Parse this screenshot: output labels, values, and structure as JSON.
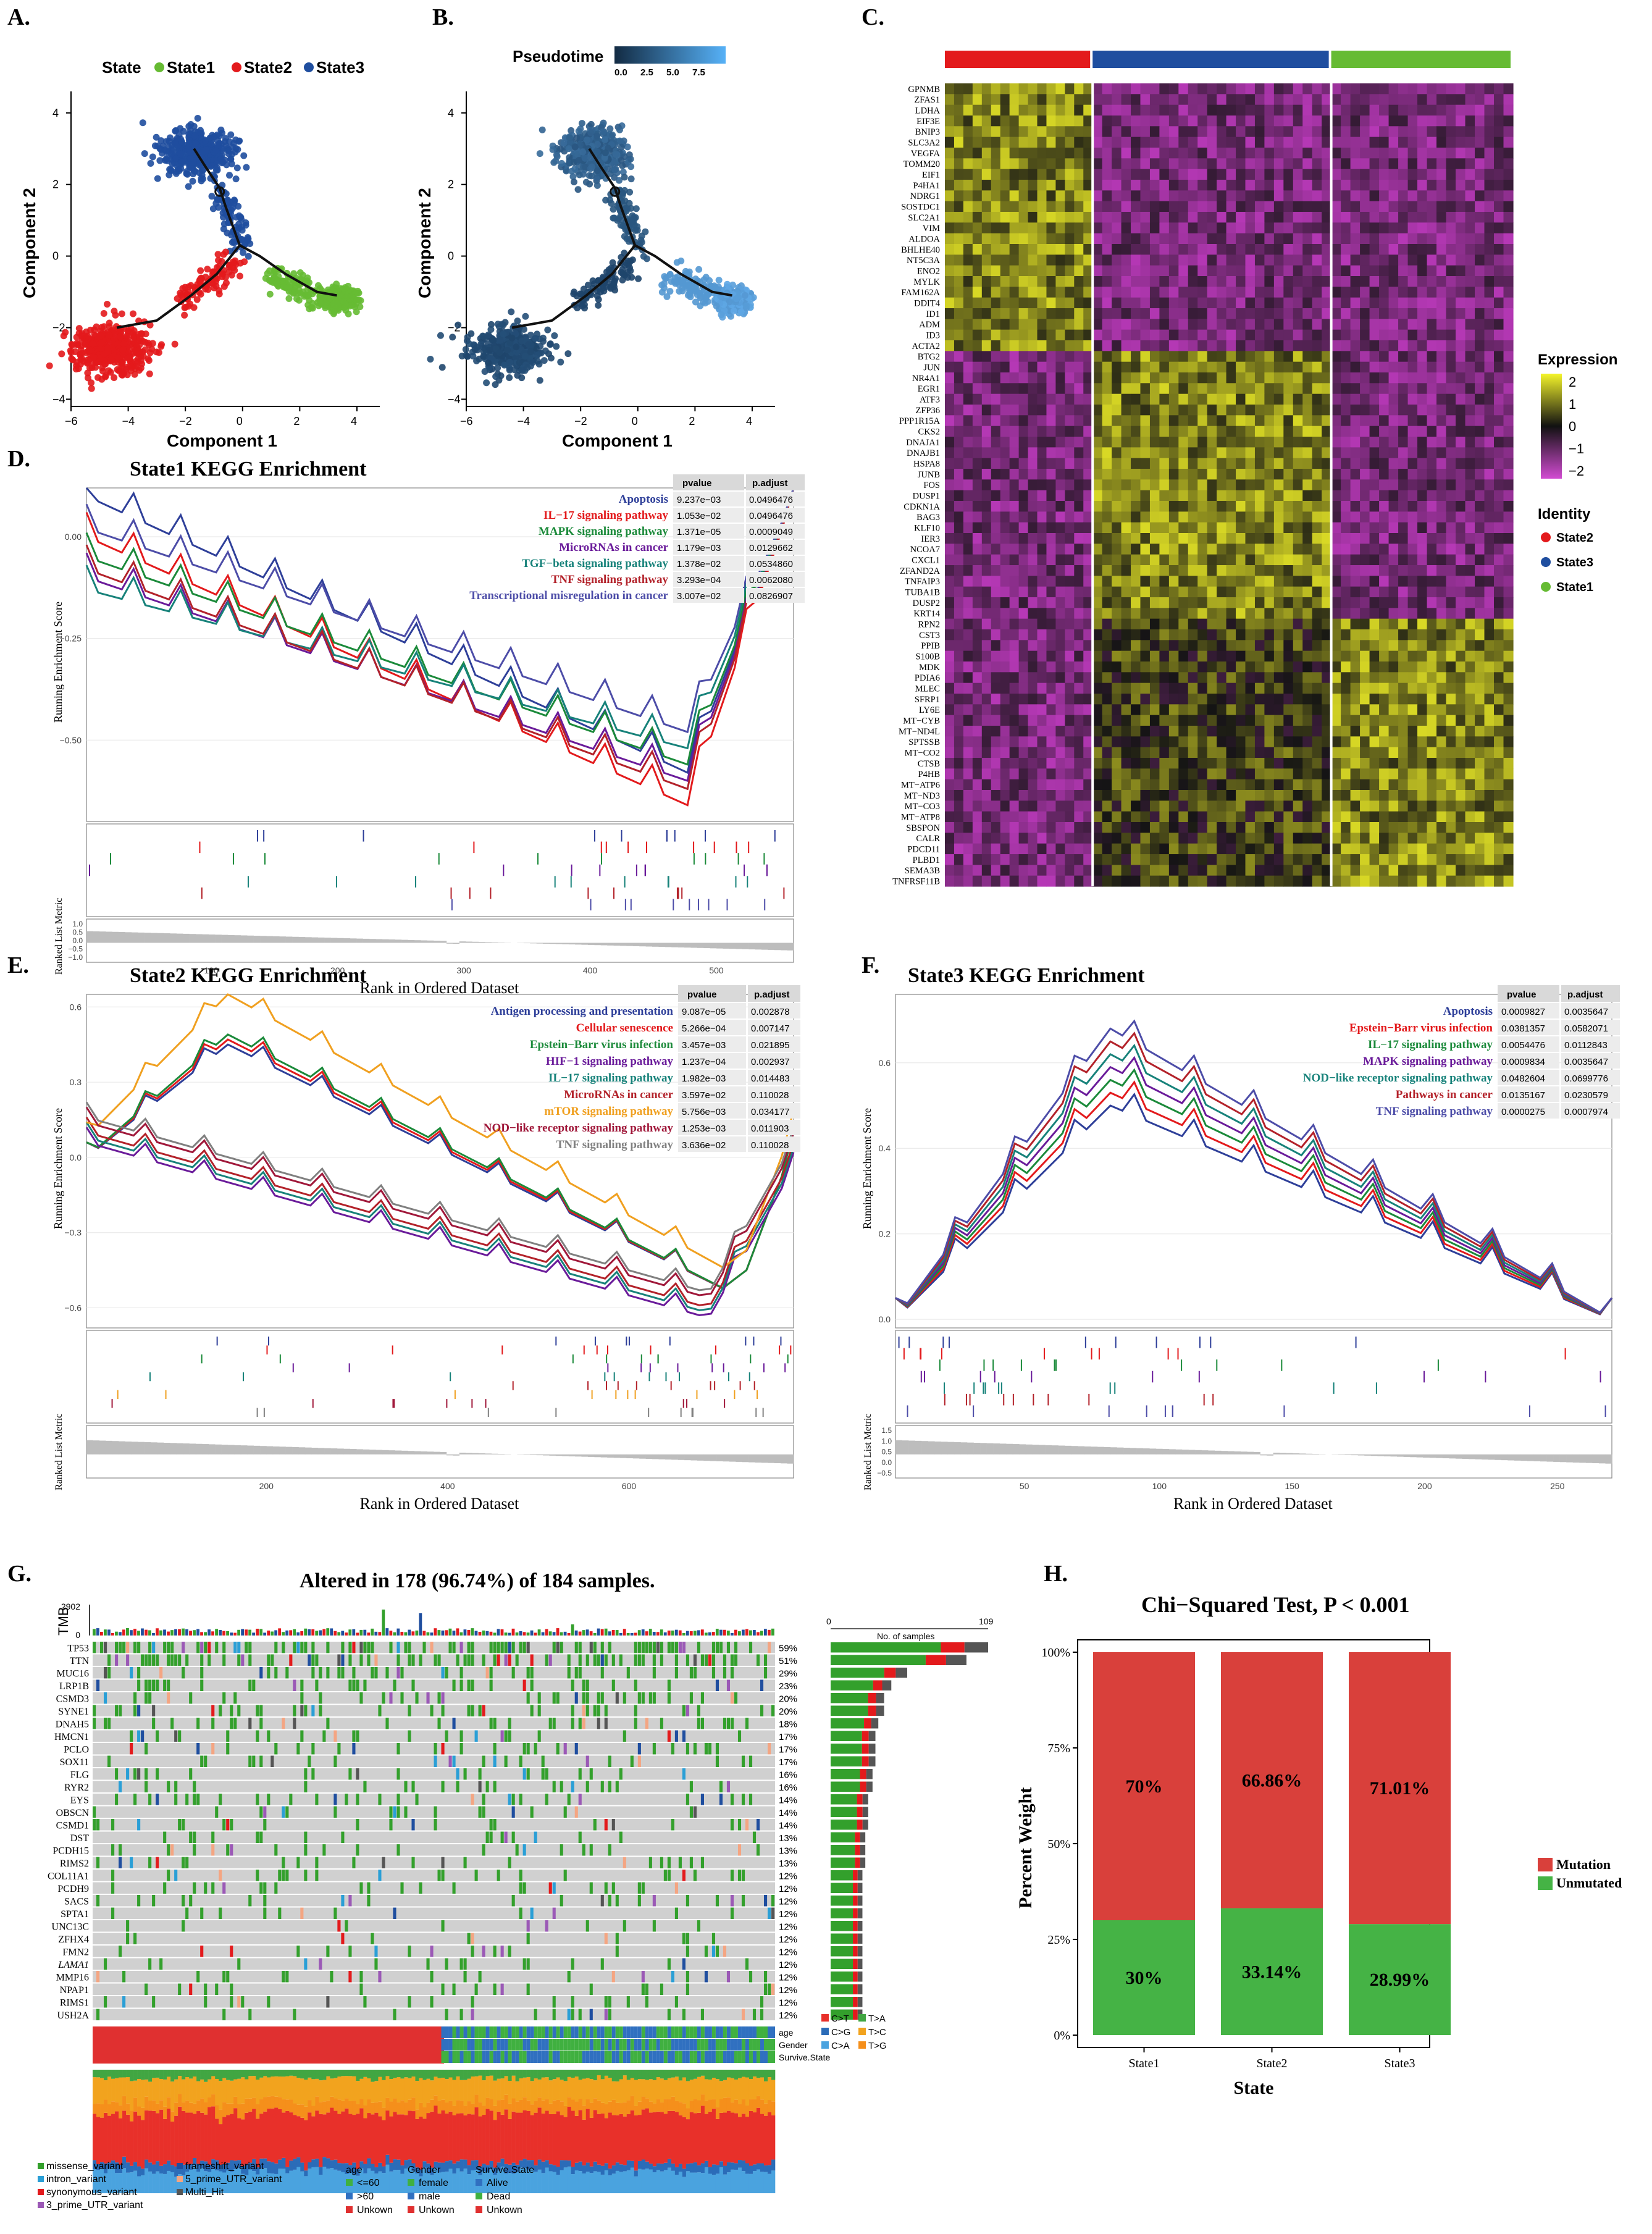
{
  "panel_labels": {
    "A": "A.",
    "B": "B.",
    "C": "C.",
    "D": "D.",
    "E": "E.",
    "F": "F.",
    "G": "G.",
    "H": "H."
  },
  "colors": {
    "state1": "#66bb33",
    "state2": "#e31a1c",
    "state3": "#1f4e9f",
    "mutation": "#d9403b",
    "unmutated": "#45b345"
  },
  "chart_data": [
    {
      "id": "A",
      "type": "scatter",
      "title": "",
      "legend_title": "State",
      "legend": [
        "State1",
        "State2",
        "State3"
      ],
      "xlabel": "Component 1",
      "ylabel": "Component 2",
      "xlim": [
        -6,
        4.8
      ],
      "ylim": [
        -4.2,
        4.6
      ],
      "xticks": [
        "−6",
        "−4",
        "−2",
        "0",
        "2",
        "4"
      ],
      "yticks": [
        "−4",
        "−2",
        "0",
        "2",
        "4"
      ],
      "clusters": [
        {
          "name": "State3",
          "center": [
            -1.6,
            2.9
          ],
          "spread": [
            1.0,
            0.55
          ],
          "arm": [
            [
              -0.8,
              1.8
            ],
            [
              0,
              0.3
            ]
          ]
        },
        {
          "name": "State2",
          "center": [
            -4.6,
            -2.6
          ],
          "spread": [
            1.1,
            0.55
          ],
          "arm": [
            [
              -2.2,
              -1.3
            ],
            [
              -0.3,
              -0.2
            ]
          ]
        },
        {
          "name": "State1",
          "center": [
            3.3,
            -1.2
          ],
          "spread": [
            0.5,
            0.25
          ],
          "arm": [
            [
              1.0,
              -0.6
            ],
            [
              2.5,
              -1.0
            ]
          ]
        }
      ]
    },
    {
      "id": "B",
      "type": "scatter",
      "legend_title": "Pseudotime",
      "legend_ticks": [
        "0.0",
        "2.5",
        "5.0",
        "7.5"
      ],
      "xlabel": "Component 1",
      "ylabel": "Component 2",
      "xlim": [
        -6,
        4.8
      ],
      "ylim": [
        -4.2,
        4.6
      ],
      "xticks": [
        "−6",
        "−4",
        "−2",
        "0",
        "2",
        "4"
      ],
      "yticks": [
        "−4",
        "−2",
        "0",
        "2",
        "4"
      ]
    },
    {
      "id": "C",
      "type": "heatmap",
      "identity_bar": [
        "State2",
        "State3",
        "State1"
      ],
      "groups_fraction": [
        0.26,
        0.42,
        0.32
      ],
      "genes": [
        "GPNMB",
        "ZFAS1",
        "LDHA",
        "EIF3E",
        "BNIP3",
        "SLC3A2",
        "VEGFA",
        "TOMM20",
        "EIF1",
        "P4HA1",
        "NDRG1",
        "SOSTDC1",
        "SLC2A1",
        "VIM",
        "ALDOA",
        "BHLHE40",
        "NT5C3A",
        "ENO2",
        "MYLK",
        "FAM162A",
        "DDIT4",
        "ID1",
        "ADM",
        "ID3",
        "ACTA2",
        "BTG2",
        "JUN",
        "NR4A1",
        "EGR1",
        "ATF3",
        "ZFP36",
        "PPP1R15A",
        "CKS2",
        "DNAJA1",
        "DNAJB1",
        "HSPA8",
        "JUNB",
        "FOS",
        "DUSP1",
        "CDKN1A",
        "BAG3",
        "KLF10",
        "IER3",
        "NCOA7",
        "CXCL1",
        "ZFAND2A",
        "TNFAIP3",
        "TUBA1B",
        "DUSP2",
        "KRT14",
        "RPN2",
        "CST3",
        "PPIB",
        "S100B",
        "MDK",
        "PDIA6",
        "MLEC",
        "SFRP1",
        "LY6E",
        "MT−CYB",
        "MT−ND4L",
        "SPTSSB",
        "MT−CO2",
        "CTSB",
        "P4HB",
        "MT−ATP6",
        "MT−ND3",
        "MT−CO3",
        "MT−ATP8",
        "SBSPON",
        "CALR",
        "PDCD11",
        "PLBD1",
        "SEMA3B",
        "TNFRSF11B"
      ],
      "gene_blocks": [
        25,
        25,
        25
      ],
      "legend_title": "Expression",
      "legend_ticks": [
        "2",
        "1",
        "0",
        "−1",
        "−2"
      ],
      "identity_title": "Identity",
      "identity_legend": [
        "State2",
        "State3",
        "State1"
      ]
    },
    {
      "id": "D",
      "type": "line",
      "title": "State1 KEGG Enrichment",
      "ylabel": "Running Enrichment Score",
      "ylabel2": "Ranked List Metric",
      "xlabel": "Rank in Ordered Dataset",
      "xlim": [
        0,
        560
      ],
      "ylim": [
        -0.7,
        0.12
      ],
      "yticks": [
        "0.00",
        "−0.25",
        "−0.50"
      ],
      "yticks2": [
        "1.0",
        "0.5",
        "0.0",
        "−0.5",
        "−1.0"
      ],
      "xticks": [
        "100",
        "200",
        "300",
        "400",
        "500"
      ],
      "table_headers": [
        "pvalue",
        "p.adjust"
      ],
      "series": [
        {
          "name": "Apoptosis",
          "color": "#2e3f99",
          "pvalue": "9.237e−03",
          "padjust": "0.0496476",
          "min": -0.58,
          "start": 0.1
        },
        {
          "name": "IL−17 signaling pathway",
          "color": "#e31a1c",
          "pvalue": "1.053e−02",
          "padjust": "0.0496476",
          "min": -0.66,
          "start": 0.0
        },
        {
          "name": "MAPK signaling pathway",
          "color": "#1b8a3a",
          "pvalue": "1.371e−05",
          "padjust": "0.0009049",
          "min": -0.56,
          "start": -0.05
        },
        {
          "name": "MicroRNAs in cancer",
          "color": "#6a1b9a",
          "pvalue": "1.179e−03",
          "padjust": "0.0129662",
          "min": -0.6,
          "start": -0.1
        },
        {
          "name": "TGF−beta signaling pathway",
          "color": "#17827a",
          "pvalue": "1.378e−02",
          "padjust": "0.0534860",
          "min": -0.52,
          "start": -0.13
        },
        {
          "name": "TNF signaling pathway",
          "color": "#b3222a",
          "pvalue": "3.293e−04",
          "padjust": "0.0062080",
          "min": -0.62,
          "start": -0.08
        },
        {
          "name": "Transcriptional misregulation in cancer",
          "color": "#4d4da8",
          "pvalue": "3.007e−02",
          "padjust": "0.0826907",
          "min": -0.48,
          "start": 0.02
        }
      ]
    },
    {
      "id": "E",
      "type": "line",
      "title": "State2 KEGG Enrichment",
      "ylabel": "Running Enrichment Score",
      "ylabel2": "Ranked List Metric",
      "xlabel": "Rank in Ordered Dataset",
      "xlim": [
        0,
        780
      ],
      "ylim": [
        -0.68,
        0.65
      ],
      "yticks": [
        "0.6",
        "0.3",
        "0.0",
        "−0.3",
        "−0.6"
      ],
      "xticks": [
        "200",
        "400",
        "600"
      ],
      "table_headers": [
        "pvalue",
        "p.adjust"
      ],
      "series": [
        {
          "name": "Antigen processing and presentation",
          "color": "#2e3f99",
          "pvalue": "9.087e−05",
          "padjust": "0.002878"
        },
        {
          "name": "Cellular senescence",
          "color": "#e31a1c",
          "pvalue": "5.266e−04",
          "padjust": "0.007147"
        },
        {
          "name": "Epstein−Barr virus infection",
          "color": "#1b8a3a",
          "pvalue": "3.457e−03",
          "padjust": "0.021895"
        },
        {
          "name": "HIF−1 signaling pathway",
          "color": "#6a1b9a",
          "pvalue": "1.237e−04",
          "padjust": "0.002937"
        },
        {
          "name": "IL−17 signaling pathway",
          "color": "#17827a",
          "pvalue": "1.982e−03",
          "padjust": "0.014483"
        },
        {
          "name": "MicroRNAs in cancer",
          "color": "#b3222a",
          "pvalue": "3.597e−02",
          "padjust": "0.110028"
        },
        {
          "name": "mTOR signaling pathway",
          "color": "#f0a020",
          "pvalue": "5.756e−03",
          "padjust": "0.034177"
        },
        {
          "name": "NOD−like receptor signaling pathway",
          "color": "#a0183a",
          "pvalue": "1.253e−03",
          "padjust": "0.011903"
        },
        {
          "name": "TNF signaling pathway",
          "color": "#808080",
          "pvalue": "3.636e−02",
          "padjust": "0.110028"
        }
      ]
    },
    {
      "id": "F",
      "type": "line",
      "title": "State3 KEGG Enrichment",
      "ylabel": "Running Enrichment Score",
      "ylabel2": "Ranked List Metric",
      "xlabel": "Rank in Ordered Dataset",
      "xlim": [
        0,
        270
      ],
      "ylim": [
        -0.02,
        0.76
      ],
      "yticks": [
        "0.6",
        "0.4",
        "0.2",
        "0.0"
      ],
      "yticks2": [
        "1.5",
        "1.0",
        "0.5",
        "0.0",
        "−0.5"
      ],
      "xticks": [
        "50",
        "100",
        "150",
        "200",
        "250"
      ],
      "table_headers": [
        "pvalue",
        "p.adjust"
      ],
      "series": [
        {
          "name": "Apoptosis",
          "color": "#2e3f99",
          "pvalue": "0.0009827",
          "padjust": "0.0035647"
        },
        {
          "name": "Epstein−Barr virus infection",
          "color": "#e31a1c",
          "pvalue": "0.0381357",
          "padjust": "0.0582071"
        },
        {
          "name": "IL−17 signaling pathway",
          "color": "#1b8a3a",
          "pvalue": "0.0054476",
          "padjust": "0.0112843"
        },
        {
          "name": "MAPK signaling pathway",
          "color": "#6a1b9a",
          "pvalue": "0.0009834",
          "padjust": "0.0035647"
        },
        {
          "name": "NOD−like receptor signaling pathway",
          "color": "#17827a",
          "pvalue": "0.0482604",
          "padjust": "0.0699776"
        },
        {
          "name": "Pathways in cancer",
          "color": "#b3222a",
          "pvalue": "0.0135167",
          "padjust": "0.0230579"
        },
        {
          "name": "TNF signaling pathway",
          "color": "#4d4da8",
          "pvalue": "0.0000275",
          "padjust": "0.0007974"
        }
      ]
    },
    {
      "id": "G",
      "type": "table",
      "title": "Altered in 178 (96.74%) of 184 samples.",
      "tmb_label": "TMB",
      "tmb_max": "2902",
      "tmb_min": "0",
      "samples_axis": [
        "0",
        "109"
      ],
      "samples_label": "No. of samples",
      "genes": [
        "TP53",
        "TTN",
        "MUC16",
        "LRP1B",
        "CSMD3",
        "SYNE1",
        "DNAH5",
        "HMCN1",
        "PCLO",
        "SOX11",
        "FLG",
        "RYR2",
        "EYS",
        "OBSCN",
        "CSMD1",
        "DST",
        "PCDH15",
        "RIMS2",
        "COL11A1",
        "PCDH9",
        "SACS",
        "SPTA1",
        "UNC13C",
        "ZFHX4",
        "FMN2",
        "LAMA1",
        "MMP16",
        "NPAP1",
        "RIMS1",
        "USH2A"
      ],
      "percents": [
        "59%",
        "51%",
        "29%",
        "23%",
        "20%",
        "20%",
        "18%",
        "17%",
        "17%",
        "17%",
        "16%",
        "16%",
        "14%",
        "14%",
        "14%",
        "13%",
        "13%",
        "13%",
        "12%",
        "12%",
        "12%",
        "12%",
        "12%",
        "12%",
        "12%",
        "12%",
        "12%",
        "12%",
        "12%",
        "12%"
      ],
      "counts": [
        109,
        94,
        53,
        42,
        37,
        37,
        33,
        31,
        31,
        31,
        29,
        29,
        26,
        26,
        26,
        24,
        24,
        24,
        22,
        22,
        22,
        22,
        22,
        22,
        22,
        22,
        22,
        22,
        22,
        22
      ],
      "clinical_rows": [
        "age",
        "Gender",
        "Survive.State"
      ],
      "titv_legend": [
        "C>T",
        "T>A",
        "C>G",
        "T>C",
        "C>A",
        "T>G"
      ],
      "titv_colors": [
        "#e8302a",
        "#41a642",
        "#2b6cb8",
        "#f2a31e",
        "#4aa3df",
        "#f58f1b"
      ],
      "variant_legend": [
        "missense_variant",
        "frameshift_variant",
        "intron_variant",
        "5_prime_UTR_variant",
        "synonymous_variant",
        "Multi_Hit",
        "3_prime_UTR_variant"
      ],
      "variant_colors": [
        "#33a02c",
        "#1f4e9f",
        "#2a9fd6",
        "#f4a582",
        "#e31a1c",
        "#555555",
        "#9b59b6"
      ],
      "age_title": "age",
      "age_legend": [
        "<=60",
        ">60",
        "Unkown"
      ],
      "age_colors": [
        "#40b040",
        "#3070c0",
        "#e03030"
      ],
      "gender_title": "Gender",
      "gender_legend": [
        "female",
        "male",
        "Unkown"
      ],
      "gender_colors": [
        "#40b040",
        "#3070c0",
        "#e03030"
      ],
      "survive_title": "Survive.State",
      "survive_legend": [
        "Alive",
        "Dead",
        "Unkown"
      ],
      "survive_colors": [
        "#3070c0",
        "#40b040",
        "#e03030"
      ]
    },
    {
      "id": "H",
      "type": "bar",
      "title": "Chi−Squared Test, P < 0.001",
      "categories": [
        "State1",
        "State2",
        "State3"
      ],
      "series": [
        {
          "name": "Unmutated",
          "values": [
            30,
            33.14,
            28.99
          ]
        },
        {
          "name": "Mutation",
          "values": [
            70,
            66.86,
            71.01
          ]
        }
      ],
      "labels_mutation": [
        "70%",
        "66.86%",
        "71.01%"
      ],
      "labels_unmutated": [
        "30%",
        "33.14%",
        "28.99%"
      ],
      "xlabel": "State",
      "ylabel": "Percent Weight",
      "yticks": [
        "0%",
        "25%",
        "50%",
        "75%",
        "100%"
      ],
      "ylim": [
        0,
        100
      ],
      "legend": [
        "Mutation",
        "Unmutated"
      ]
    }
  ]
}
